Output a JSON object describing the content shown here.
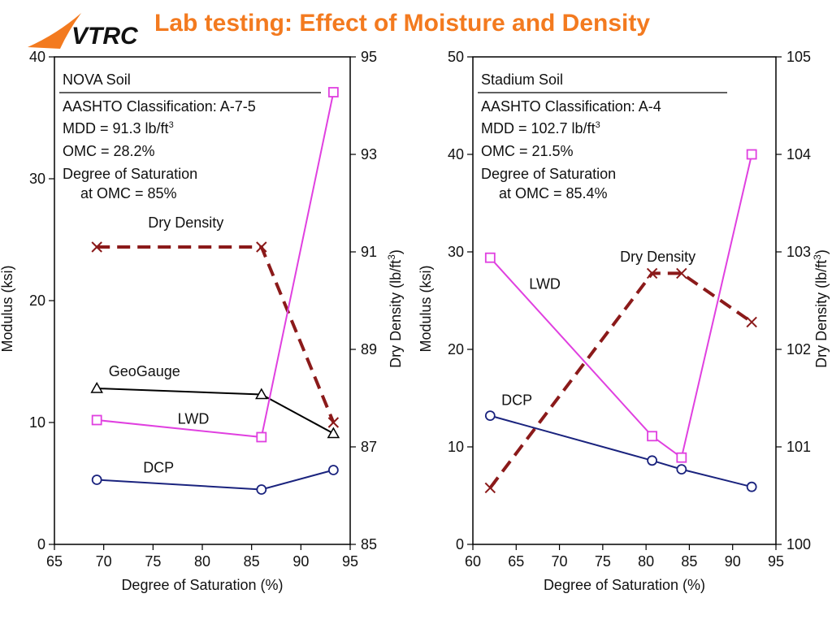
{
  "header": {
    "title": "Lab testing: Effect of Moisture and Density",
    "logo_text": "VTRC",
    "title_color": "#f37a1f",
    "logo_color": "#1f3a8a",
    "logo_swoosh_color": "#f37a1f"
  },
  "colors": {
    "lwd": "#e040e0",
    "dcp": "#1a237e",
    "geogauge": "#000000",
    "dry_density": "#8b1a1a"
  },
  "chart_data": [
    {
      "type": "line",
      "xlabel": "Degree of Saturation (%)",
      "ylabel": "Modulus (ksi)",
      "y2label_main": "Dry Density (lb/ft",
      "y2label_sup": "3",
      "y2label_end": ")",
      "xlim": [
        65,
        95
      ],
      "ylim": [
        0,
        40
      ],
      "y2lim": [
        85,
        95
      ],
      "xticks": [
        65,
        70,
        75,
        80,
        85,
        90,
        95
      ],
      "yticks": [
        0,
        10,
        20,
        30,
        40
      ],
      "y2ticks": [
        85,
        87,
        89,
        91,
        93,
        95
      ],
      "info": {
        "heading": "NOVA Soil",
        "aashto": "AASHTO Classification: A-7-5",
        "mdd_text": "MDD = 91.3 lb/ft",
        "mdd_sup": "3",
        "omc": "OMC = 28.2%",
        "sat_line1": "Degree of Saturation",
        "sat_line2": "at OMC = 85%"
      },
      "series": [
        {
          "name": "Dry Density",
          "axis": "y2",
          "marker": "x",
          "dashed": true,
          "color_key": "dry_density",
          "x": [
            69.3,
            86.0,
            93.3
          ],
          "y": [
            91.1,
            91.1,
            87.5
          ],
          "label_x": 74.5,
          "label_y": 91.5
        },
        {
          "name": "GeoGauge",
          "axis": "y",
          "marker": "triangle",
          "dashed": false,
          "color_key": "geogauge",
          "x": [
            69.3,
            86.0,
            93.3
          ],
          "y": [
            12.8,
            12.3,
            9.1
          ],
          "label_x": 70.5,
          "label_y": 13.8
        },
        {
          "name": "LWD",
          "axis": "y",
          "marker": "square",
          "dashed": false,
          "color_key": "lwd",
          "x": [
            69.3,
            86.0,
            93.3
          ],
          "y": [
            10.2,
            8.8,
            37.1
          ],
          "label_x": 77.5,
          "label_y": 9.9
        },
        {
          "name": "DCP",
          "axis": "y",
          "marker": "circle",
          "dashed": false,
          "color_key": "dcp",
          "x": [
            69.3,
            86.0,
            93.3
          ],
          "y": [
            5.3,
            4.5,
            6.1
          ],
          "label_x": 74,
          "label_y": 5.9
        }
      ]
    },
    {
      "type": "line",
      "xlabel": "Degree of Saturation (%)",
      "ylabel": "Modulus (ksi)",
      "y2label_main": "Dry Density (lb/ft",
      "y2label_sup": "3",
      "y2label_end": ")",
      "xlim": [
        60,
        95
      ],
      "ylim": [
        0,
        50
      ],
      "y2lim": [
        100,
        105
      ],
      "xticks": [
        60,
        65,
        70,
        75,
        80,
        85,
        90,
        95
      ],
      "yticks": [
        0,
        10,
        20,
        30,
        40,
        50
      ],
      "y2ticks": [
        100,
        101,
        102,
        103,
        104,
        105
      ],
      "info": {
        "heading": "Stadium Soil",
        "aashto": "AASHTO Classification: A-4",
        "mdd_text": "MDD = 102.7 lb/ft",
        "mdd_sup": "3",
        "omc": "OMC = 21.5%",
        "sat_line1": "Degree of Saturation",
        "sat_line2": "at OMC = 85.4%"
      },
      "series": [
        {
          "name": "Dry Density",
          "axis": "y2",
          "marker": "x",
          "dashed": true,
          "color_key": "dry_density",
          "x": [
            62.0,
            80.7,
            84.1,
            92.2
          ],
          "y": [
            100.58,
            102.78,
            102.78,
            102.28
          ],
          "label_x": 77,
          "label_y": 102.9
        },
        {
          "name": "LWD",
          "axis": "y",
          "marker": "square",
          "dashed": false,
          "color_key": "lwd",
          "x": [
            62.0,
            80.7,
            84.1,
            92.2
          ],
          "y": [
            29.4,
            11.1,
            8.9,
            40.0
          ],
          "label_x": 66.5,
          "label_y": 26.2
        },
        {
          "name": "DCP",
          "axis": "y",
          "marker": "circle",
          "dashed": false,
          "color_key": "dcp",
          "x": [
            62.0,
            80.7,
            84.1,
            92.2
          ],
          "y": [
            13.2,
            8.6,
            7.7,
            5.9
          ],
          "label_x": 63.3,
          "label_y": 14.3
        }
      ]
    }
  ]
}
